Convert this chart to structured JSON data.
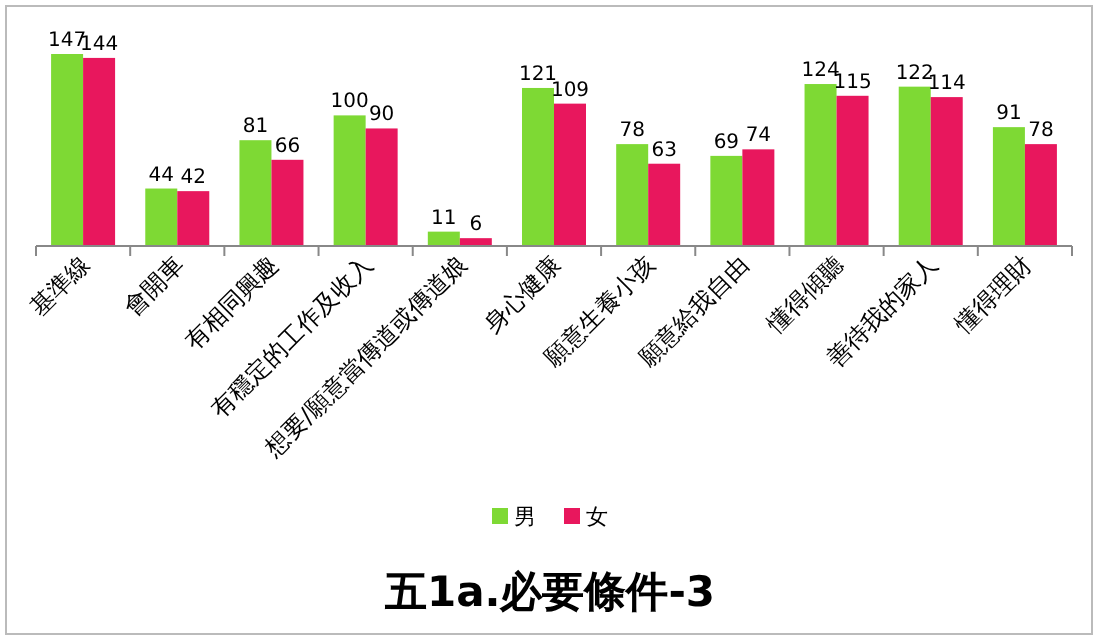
{
  "chart_data": {
    "type": "bar",
    "title": "五1a.必要條件-3",
    "categories": [
      "基準線",
      "會開車",
      "有相同興趣",
      "有穩定的工作及收入",
      "想要/願意當傳道或傳道娘",
      "身心健康",
      "願意生養小孩",
      "願意給我自由",
      "懂得傾聽",
      "善待我的家人",
      "懂得理財"
    ],
    "series": [
      {
        "name": "男",
        "color": "#7ed934",
        "values": [
          147,
          44,
          81,
          100,
          11,
          121,
          78,
          69,
          124,
          122,
          91
        ]
      },
      {
        "name": "女",
        "color": "#e8175d",
        "values": [
          144,
          42,
          66,
          90,
          6,
          109,
          63,
          74,
          115,
          114,
          78
        ]
      }
    ],
    "data_labels": true,
    "legend": "bottom"
  }
}
